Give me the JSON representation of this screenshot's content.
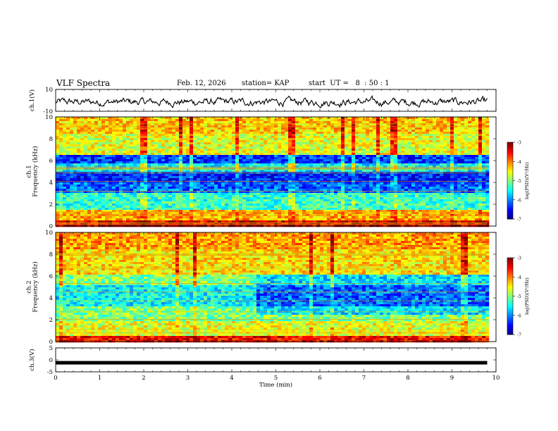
{
  "header": {
    "title": "VLF Spectra",
    "date": "Feb. 12, 2026",
    "station": "station= KAP",
    "start": "start  UT =   8  : 50 : 1"
  },
  "chart_data": [
    {
      "type": "line",
      "name": "ch1-waveform",
      "ylabel": "ch.1(V)",
      "ylim": [
        -10,
        10
      ],
      "yticks": [
        "10",
        "-10"
      ],
      "x_range_min": [
        0,
        9.8
      ],
      "description": "noisy waveform oscillating roughly between -8 and 5 V"
    },
    {
      "type": "heatmap",
      "name": "ch1-spectrogram",
      "ylabel": "ch.1\nFrequency (kHz)",
      "ylim": [
        0,
        10
      ],
      "yticks": [
        "0",
        "2",
        "4",
        "6",
        "8",
        "10"
      ],
      "x_range_min": [
        0,
        9.8
      ],
      "colorbar": {
        "label": "log(PSD)(V²/Hz)",
        "range": [
          -7,
          -3
        ],
        "ticks": [
          "-3",
          "-4",
          "-5",
          "-6",
          "-7"
        ]
      },
      "bands_khz": [
        {
          "f0": 0,
          "f1": 0.5,
          "level": -3.4
        },
        {
          "f0": 0.5,
          "f1": 1.5,
          "level": -4.2
        },
        {
          "f0": 1.5,
          "f1": 3.0,
          "level": -5.3
        },
        {
          "f0": 3.0,
          "f1": 4.0,
          "level": -6.1
        },
        {
          "f0": 4.0,
          "f1": 5.0,
          "level": -6.4
        },
        {
          "f0": 5.0,
          "f1": 5.8,
          "level": -5.5
        },
        {
          "f0": 5.8,
          "f1": 6.5,
          "level": -6.3
        },
        {
          "f0": 6.5,
          "f1": 8.5,
          "level": -4.6
        },
        {
          "f0": 8.5,
          "f1": 10,
          "level": -4.3
        }
      ]
    },
    {
      "type": "heatmap",
      "name": "ch2-spectrogram",
      "ylabel": "ch.2\nFrequency (kHz)",
      "ylim": [
        0,
        10
      ],
      "yticks": [
        "0",
        "2",
        "4",
        "6",
        "8",
        "10"
      ],
      "x_range_min": [
        0,
        9.8
      ],
      "colorbar": {
        "label": "log(PSD)(V²/Hz)",
        "range": [
          -7,
          -3
        ],
        "ticks": [
          "-3",
          "-4",
          "-5",
          "-6",
          "-7"
        ]
      },
      "bands_khz": [
        {
          "f0": 0,
          "f1": 0.5,
          "level": -3.5
        },
        {
          "f0": 0.5,
          "f1": 2.0,
          "level": -4.6
        },
        {
          "f0": 2.0,
          "f1": 3.2,
          "level": -5.0
        },
        {
          "f0": 3.2,
          "f1": 5.2,
          "level": -5.5
        },
        {
          "f0": 5.2,
          "f1": 6.2,
          "level": -5.0
        },
        {
          "f0": 6.2,
          "f1": 8.5,
          "level": -4.4
        },
        {
          "f0": 8.5,
          "f1": 10,
          "level": -4.1
        }
      ]
    },
    {
      "type": "line",
      "name": "ch3-signal",
      "ylabel": "ch.3(V)",
      "ylim": [
        -5,
        5
      ],
      "yticks": [
        "5",
        "0",
        "-5"
      ],
      "x_range_min": [
        0,
        9.8
      ],
      "value": -1.2
    }
  ],
  "xaxis": {
    "label": "Time  (min)",
    "range": [
      0,
      10
    ],
    "ticks": [
      "0",
      "1",
      "2",
      "3",
      "4",
      "5",
      "6",
      "7",
      "8",
      "9",
      "10"
    ]
  }
}
